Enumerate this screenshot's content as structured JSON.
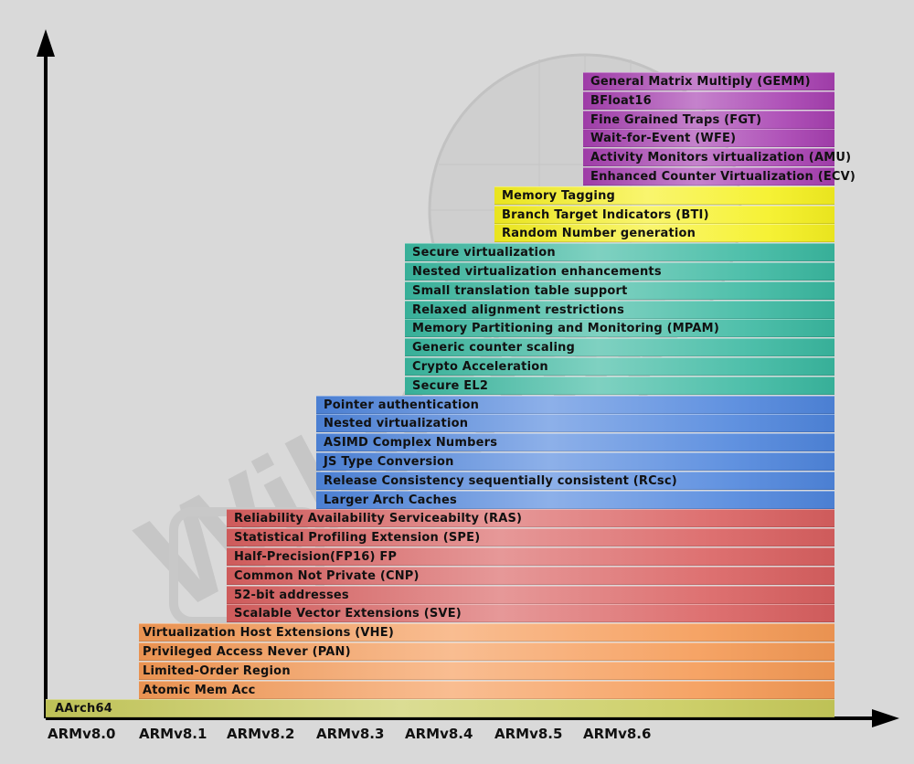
{
  "colors": {
    "v80": "#c8cb5a",
    "v81": "#f59a55",
    "v82": "#d96060",
    "v83": "#4f86dd",
    "v84": "#3ab8a0",
    "v85": "#f5f020",
    "v86": "#a63fb0"
  },
  "versions": [
    "ARMv8.0",
    "ARMv8.1",
    "ARMv8.2",
    "ARMv8.3",
    "ARMv8.4",
    "ARMv8.5",
    "ARMv8.6"
  ],
  "groups": [
    {
      "version": "ARMv8.6",
      "color": "v86",
      "features": [
        "General Matrix Multiply (GEMM)",
        "BFloat16",
        "Fine Grained Traps (FGT)",
        "Wait-for-Event (WFE)",
        "Activity Monitors virtualization (AMU)",
        "Enhanced Counter Virtualization (ECV)"
      ]
    },
    {
      "version": "ARMv8.5",
      "color": "v85",
      "features": [
        "Memory Tagging",
        "Branch Target Indicators (BTI)",
        "Random Number generation"
      ]
    },
    {
      "version": "ARMv8.4",
      "color": "v84",
      "features": [
        "Secure virtualization",
        "Nested virtualization enhancements",
        "Small translation table support",
        "Relaxed alignment restrictions",
        "Memory Partitioning and Monitoring (MPAM)",
        "Generic counter scaling",
        "Crypto Acceleration",
        "Secure EL2"
      ]
    },
    {
      "version": "ARMv8.3",
      "color": "v83",
      "features": [
        "Pointer authentication",
        "Nested virtualization",
        "ASIMD Complex Numbers",
        "JS Type Conversion",
        "Release Consistency sequentially consistent (RCsc)",
        "Larger Arch Caches"
      ]
    },
    {
      "version": "ARMv8.2",
      "color": "v82",
      "features": [
        "Reliability Availability Serviceabilty (RAS)",
        "Statistical Profiling Extension (SPE)",
        "Half-Precision(FP16) FP",
        "Common Not Private (CNP)",
        "52-bit addresses",
        "Scalable Vector Extensions (SVE)"
      ]
    },
    {
      "version": "ARMv8.1",
      "color": "v81",
      "features": [
        "Virtualization Host Extensions (VHE)",
        "Privileged Access Never (PAN)",
        "Limited-Order Region",
        "Atomic Mem Acc"
      ]
    },
    {
      "version": "ARMv8.0",
      "color": "v80",
      "features": [
        "AArch64"
      ]
    }
  ]
}
